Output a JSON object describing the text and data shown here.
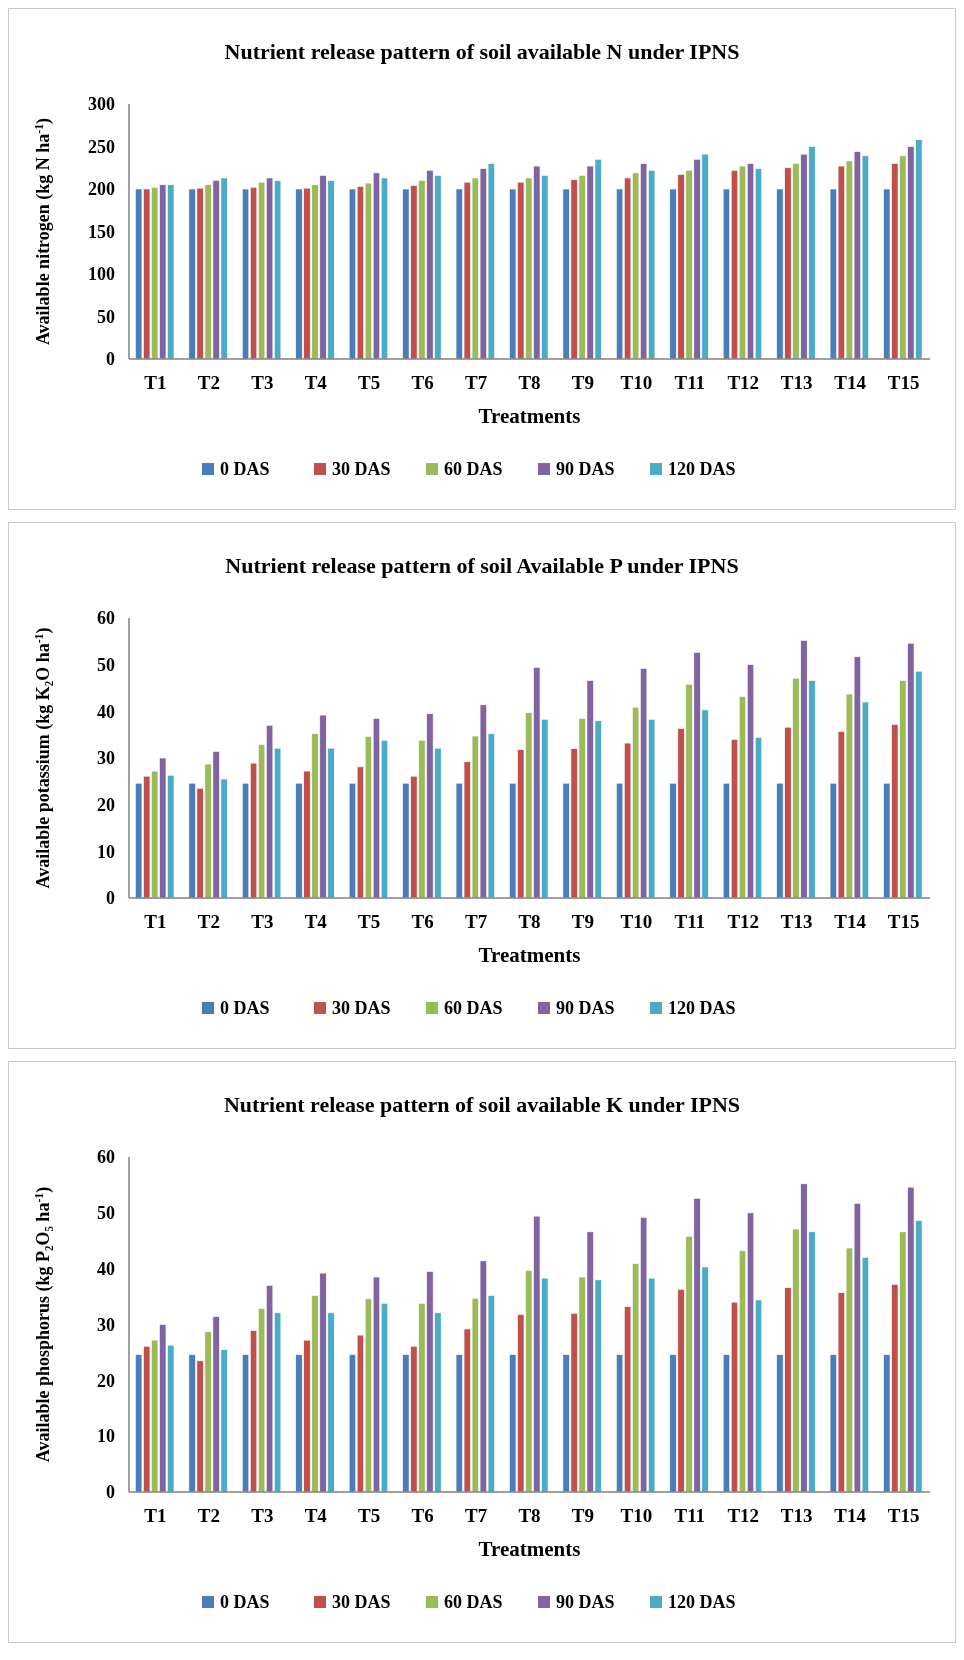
{
  "chart_data": [
    {
      "type": "bar",
      "title": "Nutrient release pattern of soil available N under IPNS",
      "xlabel": "Treatments",
      "ylabel": "Available nitrogen (kg N ha$^{-1}$)",
      "categories": [
        "T1",
        "T2",
        "T3",
        "T4",
        "T5",
        "T6",
        "T7",
        "T8",
        "T9",
        "T10",
        "T11",
        "T12",
        "T13",
        "T14",
        "T15"
      ],
      "series": [
        {
          "name": "0 DAS",
          "color": "#4a7ebb",
          "values": [
            200,
            200,
            200,
            200,
            200,
            200,
            200,
            200,
            200,
            200,
            200,
            200,
            200,
            200,
            200
          ]
        },
        {
          "name": "30 DAS",
          "color": "#c0504d",
          "values": [
            200,
            201,
            202,
            201,
            203,
            204,
            208,
            208,
            211,
            213,
            217,
            222,
            225,
            227,
            230
          ]
        },
        {
          "name": "60 DAS",
          "color": "#9bbb59",
          "values": [
            202,
            205,
            208,
            205,
            207,
            210,
            213,
            213,
            216,
            219,
            222,
            227,
            230,
            233,
            239
          ]
        },
        {
          "name": "90 DAS",
          "color": "#8064a2",
          "values": [
            205,
            210,
            213,
            216,
            219,
            222,
            224,
            227,
            227,
            230,
            235,
            230,
            241,
            244,
            250
          ]
        },
        {
          "name": "120 DAS",
          "color": "#4bacc6",
          "values": [
            205,
            213,
            210,
            210,
            213,
            216,
            230,
            216,
            235,
            222,
            241,
            224,
            250,
            239,
            258
          ]
        }
      ],
      "ylim": [
        0,
        300
      ],
      "yticks": [
        0,
        50,
        100,
        150,
        200,
        250,
        300
      ],
      "grid": false,
      "legend": "bottom"
    },
    {
      "type": "bar",
      "title": "Nutrient release pattern of soil Available P under IPNS",
      "xlabel": "Treatments",
      "ylabel": "Available potassium (kg K₂O ha$^{-1}$)",
      "categories": [
        "T1",
        "T2",
        "T3",
        "T4",
        "T5",
        "T6",
        "T7",
        "T8",
        "T9",
        "T10",
        "T11",
        "T12",
        "T13",
        "T14",
        "T15"
      ],
      "series": [
        {
          "name": "0 DAS",
          "color": "#4a7ebb",
          "values": [
            24.6,
            24.6,
            24.6,
            24.6,
            24.6,
            24.6,
            24.6,
            24.6,
            24.6,
            24.6,
            24.6,
            24.6,
            24.6,
            24.6,
            24.6
          ]
        },
        {
          "name": "30 DAS",
          "color": "#c0504d",
          "values": [
            26.1,
            23.5,
            28.9,
            27.2,
            28.1,
            26.1,
            29.2,
            31.8,
            32.0,
            33.2,
            36.3,
            34.0,
            36.6,
            35.7,
            37.2
          ]
        },
        {
          "name": "60 DAS",
          "color": "#9bbb59",
          "values": [
            27.2,
            28.7,
            32.9,
            35.2,
            34.6,
            33.8,
            34.7,
            39.7,
            38.5,
            40.9,
            45.8,
            43.2,
            47.1,
            43.7,
            46.6
          ]
        },
        {
          "name": "90 DAS",
          "color": "#8064a2",
          "values": [
            30.0,
            31.4,
            37.0,
            39.2,
            38.5,
            39.5,
            41.4,
            49.4,
            46.6,
            49.2,
            52.6,
            50.0,
            55.2,
            51.7,
            54.6
          ]
        },
        {
          "name": "120 DAS",
          "color": "#4bacc6",
          "values": [
            26.3,
            25.5,
            32.1,
            32.1,
            33.8,
            32.1,
            35.2,
            38.3,
            38.0,
            38.3,
            40.3,
            34.4,
            46.6,
            42.0,
            48.6
          ]
        }
      ],
      "ylim": [
        0,
        60
      ],
      "yticks": [
        0,
        10,
        20,
        30,
        40,
        50,
        60
      ],
      "grid": false,
      "legend": "bottom"
    },
    {
      "type": "bar",
      "title": "Nutrient release pattern of soil available K under IPNS",
      "xlabel": "Treatments",
      "ylabel": "Available phosphorus (kg P₂O₅ ha$^{-1}$)",
      "categories": [
        "T1",
        "T2",
        "T3",
        "T4",
        "T5",
        "T6",
        "T7",
        "T8",
        "T9",
        "T10",
        "T11",
        "T12",
        "T13",
        "T14",
        "T15"
      ],
      "series": [
        {
          "name": "0 DAS",
          "color": "#4a7ebb",
          "values": [
            24.6,
            24.6,
            24.6,
            24.6,
            24.6,
            24.6,
            24.6,
            24.6,
            24.6,
            24.6,
            24.6,
            24.6,
            24.6,
            24.6,
            24.6
          ]
        },
        {
          "name": "30 DAS",
          "color": "#c0504d",
          "values": [
            26.1,
            23.5,
            28.9,
            27.2,
            28.1,
            26.1,
            29.2,
            31.8,
            32.0,
            33.2,
            36.3,
            34.0,
            36.6,
            35.7,
            37.2
          ]
        },
        {
          "name": "60 DAS",
          "color": "#9bbb59",
          "values": [
            27.2,
            28.7,
            32.9,
            35.2,
            34.6,
            33.8,
            34.7,
            39.7,
            38.5,
            40.9,
            45.8,
            43.2,
            47.1,
            43.7,
            46.6
          ]
        },
        {
          "name": "90 DAS",
          "color": "#8064a2",
          "values": [
            30.0,
            31.4,
            37.0,
            39.2,
            38.5,
            39.5,
            41.4,
            49.4,
            46.6,
            49.2,
            52.6,
            50.0,
            55.2,
            51.7,
            54.6
          ]
        },
        {
          "name": "120 DAS",
          "color": "#4bacc6",
          "values": [
            26.3,
            25.5,
            32.1,
            32.1,
            33.8,
            32.1,
            35.2,
            38.3,
            38.0,
            38.3,
            40.3,
            34.4,
            46.6,
            42.0,
            48.6
          ]
        }
      ],
      "ylim": [
        0,
        60
      ],
      "yticks": [
        0,
        10,
        20,
        30,
        40,
        50,
        60
      ],
      "grid": false,
      "legend": "bottom"
    }
  ]
}
